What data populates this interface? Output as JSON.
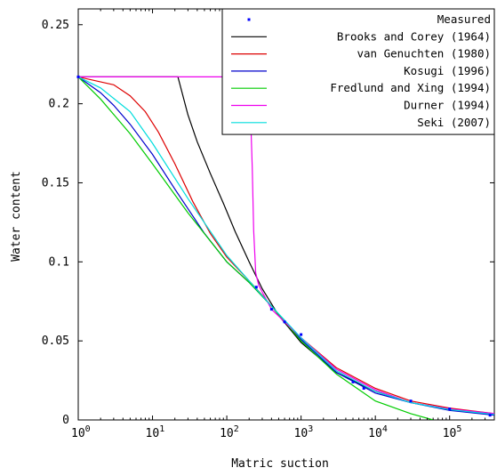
{
  "chart_data": {
    "type": "line",
    "xlabel": "Matric suction",
    "ylabel": "Water content",
    "xscale": "log",
    "xlim": [
      1,
      400000
    ],
    "ylim": [
      0,
      0.26
    ],
    "x_ticks": [
      {
        "value": 1,
        "base": "10",
        "exp": "0"
      },
      {
        "value": 10,
        "base": "10",
        "exp": "1"
      },
      {
        "value": 100,
        "base": "10",
        "exp": "2"
      },
      {
        "value": 1000,
        "base": "10",
        "exp": "3"
      },
      {
        "value": 10000,
        "base": "10",
        "exp": "4"
      },
      {
        "value": 100000,
        "base": "10",
        "exp": "5"
      }
    ],
    "y_ticks": [
      {
        "value": 0,
        "label": "0"
      },
      {
        "value": 0.05,
        "label": "0.05"
      },
      {
        "value": 0.1,
        "label": "0.1"
      },
      {
        "value": 0.15,
        "label": "0.15"
      },
      {
        "value": 0.2,
        "label": "0.2"
      },
      {
        "value": 0.25,
        "label": "0.25"
      }
    ],
    "grid": false,
    "legend_position": "top-right",
    "measured": {
      "name": "Measured",
      "color": "#0000ff",
      "points": [
        {
          "x": 1,
          "y": 0.217
        },
        {
          "x": 250,
          "y": 0.084
        },
        {
          "x": 400,
          "y": 0.07
        },
        {
          "x": 600,
          "y": 0.062
        },
        {
          "x": 1000,
          "y": 0.054
        },
        {
          "x": 5000,
          "y": 0.024
        },
        {
          "x": 7000,
          "y": 0.02
        },
        {
          "x": 30000,
          "y": 0.012
        },
        {
          "x": 100000,
          "y": 0.007
        },
        {
          "x": 350000,
          "y": 0.003
        }
      ]
    },
    "series": [
      {
        "name": "Brooks and Corey (1964)",
        "color": "#000000",
        "points": [
          [
            1,
            0.217
          ],
          [
            22,
            0.217
          ],
          [
            30,
            0.193
          ],
          [
            40,
            0.176
          ],
          [
            60,
            0.156
          ],
          [
            90,
            0.137
          ],
          [
            130,
            0.119
          ],
          [
            200,
            0.1
          ],
          [
            300,
            0.083
          ],
          [
            500,
            0.066
          ],
          [
            1000,
            0.049
          ],
          [
            3000,
            0.03
          ],
          [
            10000,
            0.018
          ],
          [
            30000,
            0.011
          ],
          [
            100000,
            0.0065
          ],
          [
            400000,
            0.0035
          ]
        ]
      },
      {
        "name": "van Genuchten (1980)",
        "color": "#dd0000",
        "points": [
          [
            1,
            0.217
          ],
          [
            3,
            0.212
          ],
          [
            5,
            0.205
          ],
          [
            8,
            0.195
          ],
          [
            12,
            0.182
          ],
          [
            20,
            0.162
          ],
          [
            35,
            0.138
          ],
          [
            60,
            0.118
          ],
          [
            100,
            0.103
          ],
          [
            200,
            0.088
          ],
          [
            300,
            0.079
          ],
          [
            600,
            0.062
          ],
          [
            1000,
            0.052
          ],
          [
            3000,
            0.033
          ],
          [
            10000,
            0.02
          ],
          [
            30000,
            0.012
          ],
          [
            100000,
            0.0075
          ],
          [
            400000,
            0.004
          ]
        ]
      },
      {
        "name": "Kosugi (1996)",
        "color": "#0000cc",
        "points": [
          [
            1,
            0.217
          ],
          [
            2,
            0.207
          ],
          [
            3,
            0.199
          ],
          [
            5,
            0.187
          ],
          [
            10,
            0.168
          ],
          [
            20,
            0.146
          ],
          [
            50,
            0.118
          ],
          [
            100,
            0.1
          ],
          [
            200,
            0.087
          ],
          [
            400,
            0.072
          ],
          [
            1000,
            0.051
          ],
          [
            3000,
            0.03
          ],
          [
            10000,
            0.017
          ],
          [
            30000,
            0.011
          ],
          [
            100000,
            0.006
          ],
          [
            400000,
            0.003
          ]
        ]
      },
      {
        "name": "Fredlund and Xing (1994)",
        "color": "#00cc00",
        "points": [
          [
            1,
            0.217
          ],
          [
            2,
            0.203
          ],
          [
            5,
            0.181
          ],
          [
            10,
            0.162
          ],
          [
            30,
            0.131
          ],
          [
            100,
            0.1
          ],
          [
            200,
            0.087
          ],
          [
            400,
            0.072
          ],
          [
            1000,
            0.05
          ],
          [
            3000,
            0.029
          ],
          [
            10000,
            0.012
          ],
          [
            30000,
            0.004
          ],
          [
            60000,
            0
          ]
        ]
      },
      {
        "name": "Durner (1994)",
        "color": "#ee00ee",
        "points": [
          [
            1,
            0.217
          ],
          [
            100,
            0.217
          ],
          [
            150,
            0.2165
          ],
          [
            180,
            0.215
          ],
          [
            200,
            0.212
          ],
          [
            210,
            0.19
          ],
          [
            220,
            0.16
          ],
          [
            230,
            0.12
          ],
          [
            245,
            0.093
          ],
          [
            270,
            0.085
          ],
          [
            400,
            0.07
          ],
          [
            1000,
            0.052
          ],
          [
            3000,
            0.032
          ],
          [
            10000,
            0.019
          ],
          [
            30000,
            0.011
          ],
          [
            100000,
            0.007
          ],
          [
            400000,
            0.004
          ]
        ]
      },
      {
        "name": "Seki (2007)",
        "color": "#00dddd",
        "points": [
          [
            1,
            0.217
          ],
          [
            2,
            0.21
          ],
          [
            5,
            0.195
          ],
          [
            10,
            0.175
          ],
          [
            30,
            0.14
          ],
          [
            100,
            0.104
          ],
          [
            200,
            0.088
          ],
          [
            400,
            0.072
          ],
          [
            1000,
            0.052
          ],
          [
            3000,
            0.031
          ],
          [
            10000,
            0.018
          ],
          [
            30000,
            0.011
          ],
          [
            100000,
            0.0065
          ],
          [
            400000,
            0.0035
          ]
        ]
      }
    ]
  }
}
